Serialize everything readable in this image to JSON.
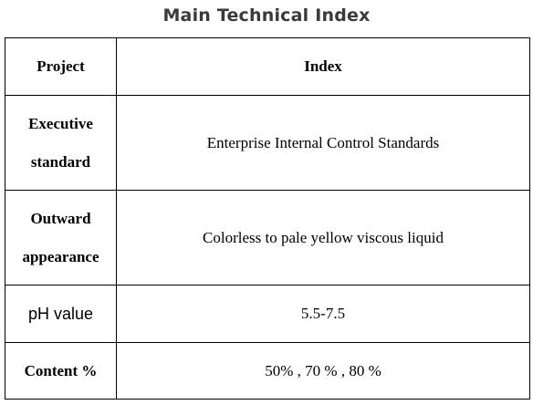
{
  "title": "Main Technical Index",
  "table": {
    "headers": [
      "Project",
      "Index"
    ],
    "rows": [
      {
        "project_line1": "Executive",
        "project_line2": "standard",
        "index": "Enterprise Internal Control Standards"
      },
      {
        "project_line1": "Outward",
        "project_line2": "appearance",
        "index": "Colorless to pale yellow viscous liquid"
      },
      {
        "project": "pH value",
        "index": "5.5-7.5"
      },
      {
        "project": "Content %",
        "index": "50% , 70 % , 80 %"
      }
    ]
  }
}
